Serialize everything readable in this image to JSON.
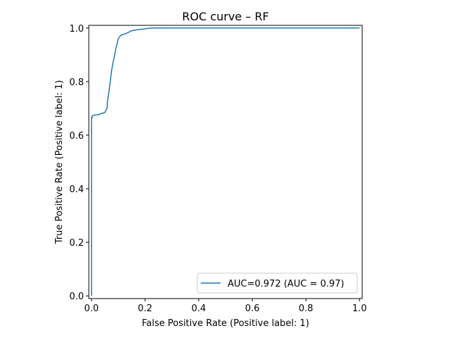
{
  "chart_data": {
    "type": "line",
    "title": "ROC curve – RF",
    "xlabel": "False Positive Rate (Positive label: 1)",
    "ylabel": "True Positive Rate (Positive label: 1)",
    "xlim": [
      -0.01,
      1.01
    ],
    "ylim": [
      -0.01,
      1.01
    ],
    "xticks": [
      0.0,
      0.2,
      0.4,
      0.6,
      0.8,
      1.0
    ],
    "xtick_labels": [
      "0.0",
      "0.2",
      "0.4",
      "0.6",
      "0.8",
      "1.0"
    ],
    "yticks": [
      0.0,
      0.2,
      0.4,
      0.6,
      0.8,
      1.0
    ],
    "ytick_labels": [
      "0.0",
      "0.2",
      "0.4",
      "0.6",
      "0.8",
      "1.0"
    ],
    "grid": false,
    "legend_position": "lower-right",
    "series": [
      {
        "name": "AUC=0.972 (AUC = 0.97)",
        "color": "#1f77b4",
        "x": [
          0.0,
          0.0,
          0.003,
          0.003,
          0.01,
          0.02,
          0.03,
          0.05,
          0.055,
          0.058,
          0.06,
          0.065,
          0.07,
          0.075,
          0.08,
          0.085,
          0.09,
          0.095,
          0.1,
          0.105,
          0.11,
          0.12,
          0.13,
          0.14,
          0.15,
          0.16,
          0.18,
          0.2,
          0.22,
          0.3,
          0.5,
          0.8,
          1.0
        ],
        "y": [
          0.0,
          0.665,
          0.665,
          0.672,
          0.675,
          0.676,
          0.678,
          0.685,
          0.695,
          0.7,
          0.73,
          0.76,
          0.8,
          0.84,
          0.87,
          0.89,
          0.92,
          0.94,
          0.96,
          0.968,
          0.973,
          0.977,
          0.98,
          0.985,
          0.99,
          0.992,
          0.995,
          0.997,
          1.0,
          1.0,
          1.0,
          1.0,
          1.0
        ]
      }
    ]
  }
}
